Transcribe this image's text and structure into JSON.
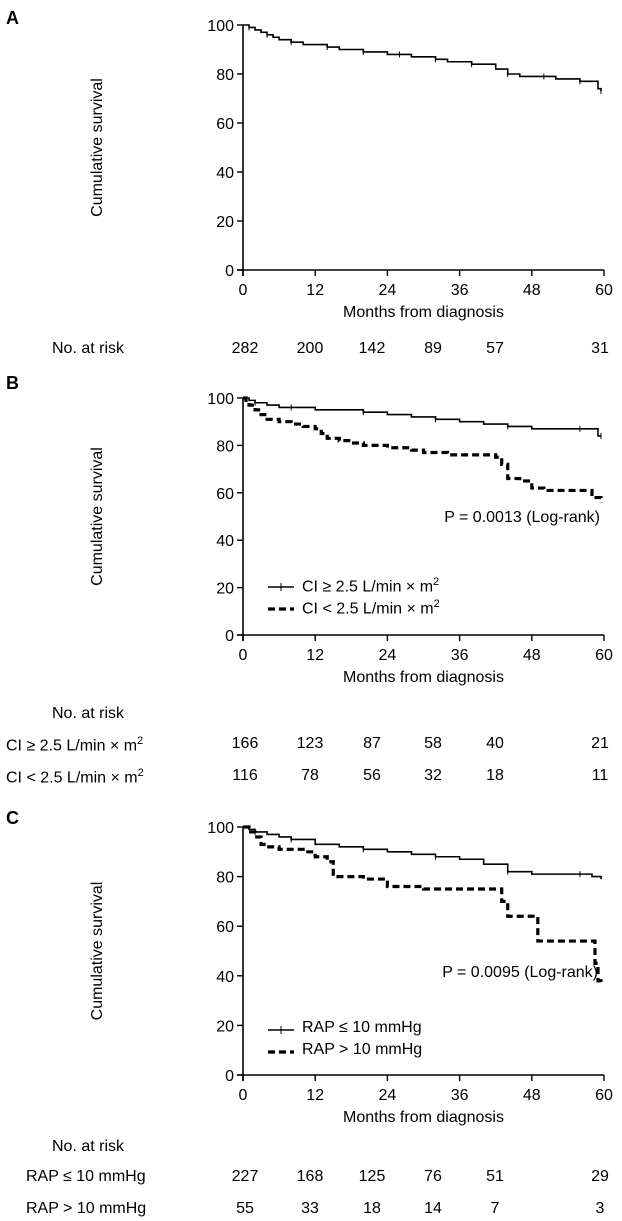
{
  "chart_data": [
    {
      "type": "line",
      "panel_label": "A",
      "ylabel": "Cumulative survival",
      "xlabel": "Months from diagnosis",
      "xlim": [
        0,
        60
      ],
      "ylim": [
        0,
        100
      ],
      "xticks": [
        "0",
        "12",
        "24",
        "36",
        "48",
        "60"
      ],
      "yticks": [
        "0",
        "20",
        "40",
        "60",
        "80",
        "100"
      ],
      "annotation": "",
      "series": [
        {
          "name": "",
          "style": "solid",
          "x": [
            0,
            0.5,
            1,
            2,
            3,
            4,
            5,
            6,
            8,
            10,
            12,
            14,
            16,
            18,
            20,
            22,
            24,
            26,
            28,
            30,
            32,
            34,
            36,
            38,
            40,
            42,
            44,
            46,
            48,
            50,
            52,
            54,
            56,
            58,
            59,
            59.5
          ],
          "y": [
            100,
            100,
            99,
            98,
            97,
            96,
            95,
            94,
            93,
            92,
            92,
            91,
            90,
            90,
            89,
            89,
            88,
            88,
            87,
            87,
            86,
            85,
            85,
            84,
            84,
            82,
            80,
            79,
            79,
            79,
            78,
            78,
            77,
            77,
            74,
            73
          ]
        }
      ],
      "risk_table": {
        "title": "No. at risk",
        "rows": [
          {
            "label": "",
            "values": [
              "282",
              "200",
              "142",
              "89",
              "57",
              "31"
            ]
          }
        ]
      }
    },
    {
      "type": "line",
      "panel_label": "B",
      "ylabel": "Cumulative survival",
      "xlabel": "Months from diagnosis",
      "xlim": [
        0,
        60
      ],
      "ylim": [
        0,
        100
      ],
      "xticks": [
        "0",
        "12",
        "24",
        "36",
        "48",
        "60"
      ],
      "yticks": [
        "0",
        "20",
        "40",
        "60",
        "80",
        "100"
      ],
      "annotation": "P = 0.0013 (Log-rank)",
      "legend": [
        {
          "prefix": "CI ≥ 2.5 L/min × m",
          "sup": "2",
          "style": "solid"
        },
        {
          "prefix": "CI < 2.5 L/min × m",
          "sup": "2",
          "style": "dashed"
        }
      ],
      "series": [
        {
          "name": "CI ≥ 2.5 L/min × m2",
          "style": "solid",
          "x": [
            0,
            1,
            2,
            4,
            6,
            8,
            12,
            16,
            20,
            24,
            28,
            32,
            36,
            40,
            44,
            48,
            52,
            56,
            58,
            59,
            59.5
          ],
          "y": [
            100,
            99,
            98,
            97,
            96,
            96,
            95,
            95,
            94,
            93,
            92,
            91,
            90,
            89,
            88,
            87,
            87,
            87,
            87,
            84,
            84
          ]
        },
        {
          "name": "CI < 2.5 L/min × m2",
          "style": "dashed",
          "x": [
            0,
            0.5,
            1,
            2,
            3,
            4,
            6,
            8,
            10,
            12,
            13,
            14,
            16,
            18,
            20,
            24,
            28,
            30,
            34,
            38,
            42,
            43,
            44,
            46,
            48,
            50,
            54,
            58,
            59.5
          ],
          "y": [
            100,
            99,
            97,
            95,
            93,
            91,
            90,
            89,
            88,
            87,
            85,
            83,
            82,
            81,
            80,
            79,
            78,
            77,
            76,
            76,
            75,
            72,
            66,
            65,
            62,
            61,
            61,
            58,
            56
          ]
        }
      ],
      "risk_table": {
        "title": "No. at risk",
        "rows": [
          {
            "prefix": "CI ≥ 2.5 L/min × m",
            "sup": "2",
            "values": [
              "166",
              "123",
              "87",
              "58",
              "40",
              "21"
            ]
          },
          {
            "prefix": "CI < 2.5 L/min × m",
            "sup": "2",
            "values": [
              "116",
              "78",
              "56",
              "32",
              "18",
              "11"
            ]
          }
        ]
      }
    },
    {
      "type": "line",
      "panel_label": "C",
      "ylabel": "Cumulative survival",
      "xlabel": "Months from diagnosis",
      "xlim": [
        0,
        60
      ],
      "ylim": [
        0,
        100
      ],
      "xticks": [
        "0",
        "12",
        "24",
        "36",
        "48",
        "60"
      ],
      "yticks": [
        "0",
        "20",
        "40",
        "60",
        "80",
        "100"
      ],
      "annotation": "P = 0.0095 (Log-rank)",
      "legend": [
        {
          "prefix": "RAP ≤ 10 mmHg",
          "sup": "",
          "style": "solid"
        },
        {
          "prefix": "RAP > 10 mmHg",
          "sup": "",
          "style": "dashed"
        }
      ],
      "series": [
        {
          "name": "RAP ≤ 10 mmHg",
          "style": "solid",
          "x": [
            0,
            1,
            2,
            4,
            6,
            8,
            12,
            16,
            20,
            24,
            28,
            32,
            36,
            40,
            44,
            48,
            52,
            56,
            58,
            59.5
          ],
          "y": [
            100,
            99,
            98,
            97,
            96,
            95,
            93,
            92,
            91,
            90,
            89,
            88,
            87,
            85,
            82,
            81,
            81,
            81,
            80,
            79
          ]
        },
        {
          "name": "RAP > 10 mmHg",
          "style": "dashed",
          "x": [
            0,
            1,
            2,
            3,
            4,
            6,
            8,
            10,
            12,
            14,
            15,
            16,
            20,
            24,
            30,
            36,
            42,
            43,
            44,
            48,
            49,
            58,
            58.5,
            59,
            59.5
          ],
          "y": [
            100,
            98,
            96,
            93,
            92,
            91,
            91,
            90,
            88,
            86,
            80,
            80,
            79,
            76,
            75,
            75,
            75,
            70,
            64,
            64,
            54,
            54,
            45,
            38,
            36
          ]
        }
      ],
      "risk_table": {
        "title": "No. at risk",
        "rows": [
          {
            "prefix": "RAP ≤ 10 mmHg",
            "sup": "",
            "values": [
              "227",
              "168",
              "125",
              "76",
              "51",
              "29"
            ]
          },
          {
            "prefix": "RAP > 10 mmHg",
            "sup": "",
            "values": [
              "55",
              "33",
              "18",
              "14",
              "7",
              "3"
            ]
          }
        ]
      }
    }
  ]
}
